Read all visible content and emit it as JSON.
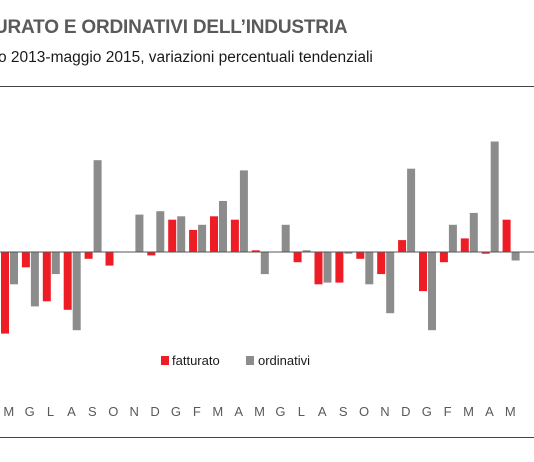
{
  "header": {
    "title": "URATO E ORDINATIVI DELL’INDUSTRIA",
    "subtitle": "o 2013-maggio 2015, variazioni percentuali tendenziali"
  },
  "chart_data": {
    "type": "bar",
    "title": "URATO E ORDINATIVI DELL’INDUSTRIA",
    "subtitle": "o 2013-maggio 2015, variazioni percentuali tendenziali",
    "xlabel": "",
    "ylabel": "",
    "ylim": [
      -7,
      7
    ],
    "grid": false,
    "legend": "bottom-center",
    "categories": [
      "M",
      "G",
      "L",
      "A",
      "S",
      "O",
      "N",
      "D",
      "G",
      "F",
      "M",
      "A",
      "M",
      "G",
      "L",
      "A",
      "S",
      "O",
      "N",
      "D",
      "G",
      "F",
      "M",
      "A",
      "M"
    ],
    "series": [
      {
        "name": "fatturato",
        "color": "#ee1c25",
        "values": [
          -4.8,
          -0.9,
          -2.9,
          -3.4,
          -0.4,
          -0.8,
          0.0,
          -0.2,
          1.9,
          1.3,
          2.1,
          1.9,
          0.1,
          0.0,
          -0.6,
          -1.9,
          -1.8,
          -0.4,
          -1.3,
          0.7,
          -2.3,
          -0.6,
          0.8,
          -0.1,
          1.9
        ]
      },
      {
        "name": "ordinativi",
        "color": "#8c8c8c",
        "values": [
          -1.9,
          -3.2,
          -1.3,
          -4.6,
          5.4,
          0.0,
          2.2,
          2.4,
          2.1,
          1.6,
          3.0,
          4.8,
          -1.3,
          1.6,
          0.1,
          -1.8,
          -0.1,
          -1.9,
          -3.6,
          4.9,
          -4.6,
          1.6,
          2.3,
          6.5,
          -0.5
        ]
      }
    ]
  }
}
